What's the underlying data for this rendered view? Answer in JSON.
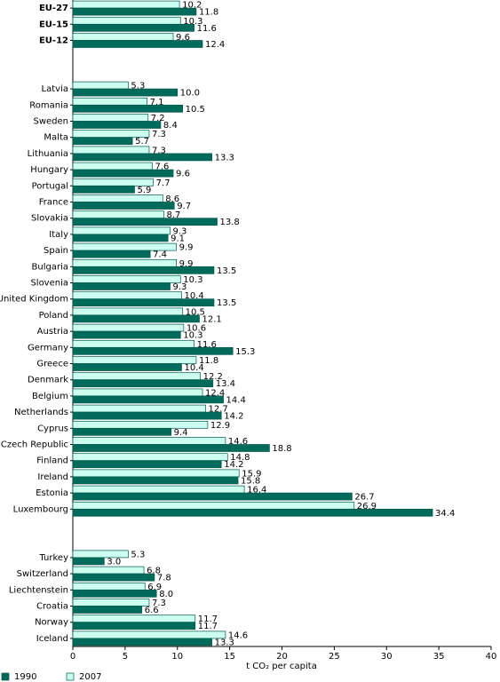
{
  "chart_data": {
    "type": "hbar",
    "orientation": "horizontal",
    "x_label": "t CO₂ per capita",
    "categories": [
      "EU-27",
      "EU-15",
      "EU-12",
      null,
      null,
      "Latvia",
      "Romania",
      "Sweden",
      "Malta",
      "Lithuania",
      "Hungary",
      "Portugal",
      "France",
      "Slovakia",
      "Italy",
      "Spain",
      "Bulgaria",
      "Slovenia",
      "United Kingdom",
      "Poland",
      "Austria",
      "Germany",
      "Greece",
      "Denmark",
      "Belgium",
      "Netherlands",
      "Cyprus",
      "Czech Republic",
      "Finland",
      "Ireland",
      "Estonia",
      "Luxembourg",
      null,
      null,
      "Turkey",
      "Switzerland",
      "Liechtenstein",
      "Croatia",
      "Norway",
      "Iceland"
    ],
    "series": [
      {
        "name": "1990",
        "color": "#006b5b",
        "values": [
          11.8,
          11.6,
          12.4,
          null,
          null,
          10.0,
          10.5,
          8.4,
          5.7,
          13.3,
          9.6,
          5.9,
          9.7,
          13.8,
          9.1,
          7.4,
          13.5,
          9.3,
          13.5,
          12.1,
          10.3,
          15.3,
          10.4,
          13.4,
          14.4,
          14.2,
          9.4,
          18.8,
          14.2,
          15.8,
          26.7,
          34.4,
          null,
          null,
          3.0,
          7.8,
          8.0,
          6.6,
          11.7,
          13.3
        ],
        "value_labels": [
          "11.8",
          "11.6",
          "12.4",
          null,
          null,
          "10.0",
          "10.5",
          "8.4",
          "5.7",
          "13.3",
          "9.6",
          "5.9",
          "9.7",
          "13.8",
          "9.1",
          "7.4",
          "13.5",
          "9.3",
          "13.5",
          "12.1",
          "10.3",
          "15.3",
          "10.4",
          "13.4",
          "14.4",
          "14.2",
          "9.4",
          "18.8",
          "14.2",
          "15.8",
          "26.7",
          "34.4",
          null,
          null,
          "3.0",
          "7.8",
          "8.0",
          "6.6",
          "11.7",
          "13.3"
        ]
      },
      {
        "name": "2007",
        "color": "#ccfff0",
        "values": [
          10.2,
          10.3,
          9.6,
          null,
          null,
          5.3,
          7.1,
          7.2,
          7.3,
          7.3,
          7.6,
          7.7,
          8.6,
          8.7,
          9.3,
          9.9,
          9.9,
          10.3,
          10.4,
          10.5,
          10.6,
          11.6,
          11.8,
          12.2,
          12.4,
          12.7,
          12.9,
          14.6,
          14.8,
          15.9,
          16.4,
          26.9,
          null,
          null,
          5.3,
          6.8,
          6.9,
          7.3,
          11.7,
          14.6
        ],
        "value_labels": [
          "10.2",
          "10.3",
          "9.6",
          null,
          null,
          "5.3",
          "7.1",
          "7.2",
          "7.3",
          "7.3",
          "7.6",
          "7.7",
          "8.6",
          "8.7",
          "9.3",
          "9.9",
          "9.9",
          "10.3",
          "10.4",
          "10.5",
          "10.6",
          "11.6",
          "11.8",
          "12.2",
          "12.4",
          "12.7",
          "12.9",
          "14.6",
          "14.8",
          "15.9",
          "16.4",
          "26.9",
          null,
          null,
          "5.3",
          "6.8",
          "6.9",
          "7.3",
          "11.7",
          "14.6"
        ]
      }
    ],
    "xlim": [
      0,
      40
    ],
    "xticks": [
      0,
      5,
      10,
      15,
      20,
      25,
      30,
      35,
      40
    ],
    "grid": false,
    "legend": "bottom"
  }
}
